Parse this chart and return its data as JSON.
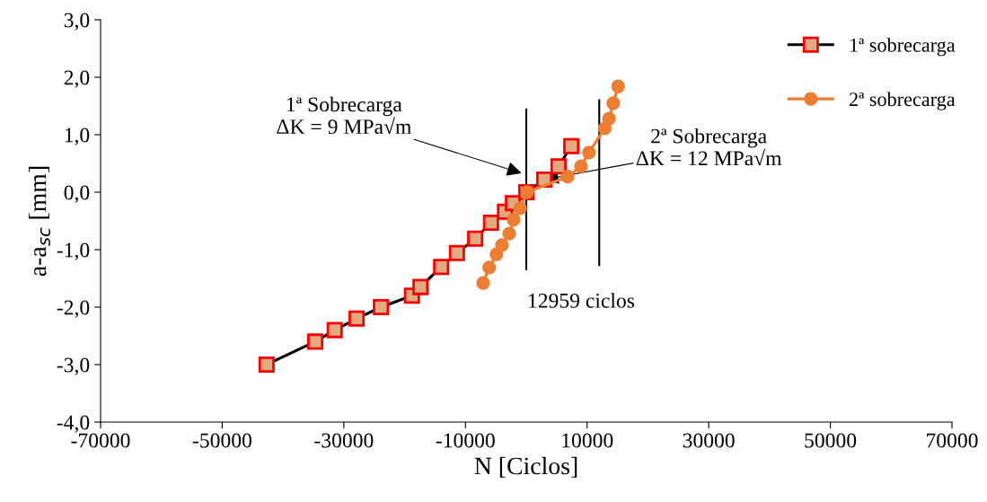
{
  "chart_data": {
    "type": "line",
    "xlabel": "N [Ciclos]",
    "ylabel": "a-a$_{sc}$ [mm]",
    "xlim": [
      -70000,
      70000
    ],
    "xticks": [
      -70000,
      -50000,
      -30000,
      -10000,
      10000,
      30000,
      50000,
      70000
    ],
    "ylim": [
      -4,
      3
    ],
    "yticks": [
      {
        "value": -4,
        "label": "-4,0"
      },
      {
        "value": -3,
        "label": "-3,0"
      },
      {
        "value": -2,
        "label": "-2,0"
      },
      {
        "value": -1,
        "label": "-1,0"
      },
      {
        "value": 0,
        "label": "0,0"
      },
      {
        "value": 1,
        "label": "1,0"
      },
      {
        "value": 2,
        "label": "2,0"
      },
      {
        "value": 3,
        "label": "3,0"
      }
    ],
    "grid": false,
    "legend": "top right",
    "line_style": "solid",
    "series": [
      {
        "name": "1ª sobrecarga",
        "color": "#ff0000",
        "marker": "square",
        "x": [
          -42700,
          -34700,
          -31500,
          -27900,
          -23900,
          -18800,
          -17400,
          -14000,
          -11400,
          -8400,
          -5800,
          -3500,
          -2200,
          0,
          2950,
          5300,
          7400
        ],
        "values": [
          -3.0,
          -2.6,
          -2.4,
          -2.2,
          -2.0,
          -1.8,
          -1.65,
          -1.3,
          -1.06,
          -0.81,
          -0.53,
          -0.34,
          -0.19,
          0.0,
          0.22,
          0.45,
          0.8
        ]
      },
      {
        "name": "2ª sobrecarga",
        "color": "#ed7d31",
        "marker": "circle",
        "x": [
          -7100,
          -6100,
          -4900,
          -4000,
          -2800,
          -2100,
          -1000,
          150,
          6800,
          9000,
          10300,
          12900,
          13600,
          14300,
          15100
        ],
        "values": [
          -1.58,
          -1.31,
          -1.08,
          -0.92,
          -0.72,
          -0.48,
          -0.28,
          0.0,
          0.27,
          0.45,
          0.69,
          1.11,
          1.28,
          1.55,
          1.84
        ]
      }
    ],
    "ref_lines": [
      {
        "axis": "x",
        "value": 0,
        "color": "#000000"
      },
      {
        "axis": "x",
        "value": 12000,
        "color": "#000000"
      }
    ],
    "annotations": [
      "1ª Sobrecarga\nΔK = 9 MPa√m",
      {
        "text": "2ª Sobrecarga\nΔK = 12 MPa√m",
        "x": 2950,
        "y": 0.22
      },
      "12959 ciclos"
    ]
  }
}
